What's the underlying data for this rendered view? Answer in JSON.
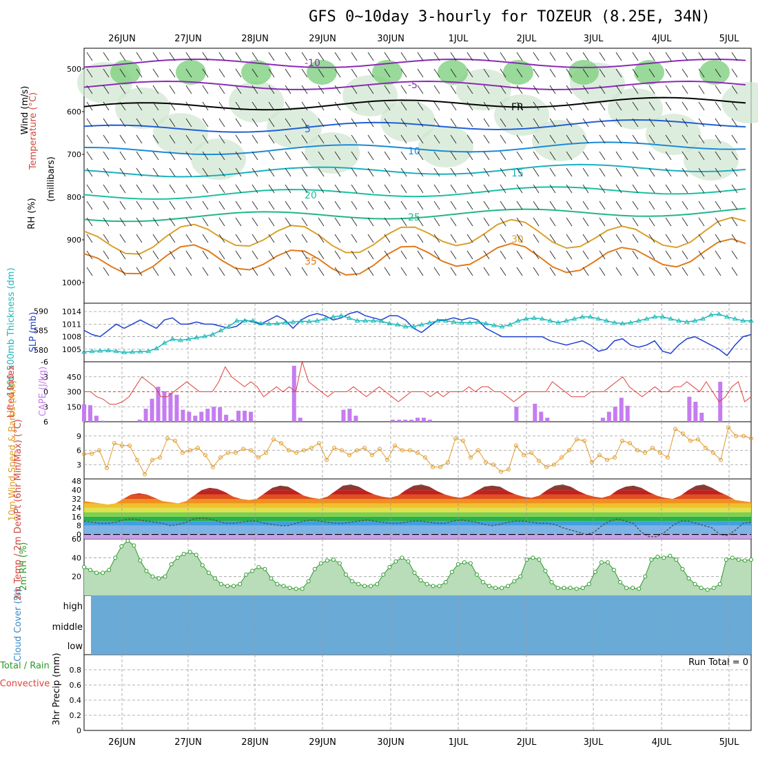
{
  "title": "GFS 0~10day 3-hourly for TOZEUR (8.25E, 34N)",
  "dates": [
    "26JUN",
    "27JUN",
    "28JUN",
    "29JUN",
    "30JUN",
    "1JUL",
    "2JUL",
    "3JUL",
    "4JUL",
    "5JUL"
  ],
  "colors": {
    "grid": "#999999",
    "slp": "#1f3fcf",
    "thickness": "#19b9b9",
    "lifted_index": "#e0403a",
    "cape": "#c57cf0",
    "wind": "#e09a2a",
    "rh": "#2a9a2a",
    "cloud_bg": "#6aaad6",
    "cloud_fill": "#ececec"
  },
  "chart_data": [
    {
      "panel": "upper-air",
      "type": "heatmap",
      "ylabel_parts": [
        "Wind (m/s)",
        "Temperature (°C)",
        "RH (%)",
        "(millibars)"
      ],
      "y_ticks": [
        "500",
        "600",
        "700",
        "800",
        "900",
        "1000"
      ],
      "ylim": [
        1000,
        450
      ],
      "temperature_contour_labels": [
        "-10",
        "-5",
        "FR",
        "5",
        "10",
        "15",
        "20",
        "25",
        "30",
        "35"
      ],
      "temperature_isotherms": [
        -10,
        -5,
        0,
        5,
        10,
        15,
        20,
        25,
        30,
        35
      ]
    },
    {
      "panel": "slp-thickness",
      "type": "line",
      "ylabel_left": "1000-500mb Thickness (dm)",
      "ylabel_right": "SLP (mb)",
      "y_ticks_left": [
        "590",
        "585",
        "580"
      ],
      "y_ticks_right": [
        "1014",
        "1011",
        "1008",
        "1005"
      ],
      "series": [
        {
          "name": "SLP (mb)",
          "values": [
            1009.5,
            1008.5,
            1008,
            1009.5,
            1011,
            1010,
            1011,
            1012,
            1011,
            1010,
            1012,
            1012.5,
            1011,
            1011,
            1011.5,
            1011,
            1011,
            1010.5,
            1010,
            1010.5,
            1012,
            1011.5,
            1011,
            1012,
            1013,
            1012,
            1010,
            1012,
            1013,
            1013.5,
            1013,
            1012,
            1012.5,
            1013.5,
            1014,
            1013,
            1012.5,
            1012,
            1013,
            1013,
            1012,
            1010,
            1009,
            1010.5,
            1012,
            1012,
            1012.5,
            1012,
            1012.5,
            1012,
            1010,
            1009,
            1008,
            1008,
            1008,
            1008,
            1008,
            1008,
            1007,
            1006.5,
            1006,
            1006.5,
            1007,
            1006,
            1004.5,
            1005,
            1007,
            1007.5,
            1006,
            1005.5,
            1006,
            1007,
            1004.5,
            1004,
            1006,
            1007.5,
            1008,
            1007,
            1006,
            1005,
            1003.5,
            1006,
            1008,
            1008.5
          ]
        },
        {
          "name": "1000-500mb Thickness (dm)",
          "values": [
            579.5,
            579.7,
            579.8,
            579.9,
            579.7,
            579.4,
            579.5,
            579.6,
            579.7,
            580.4,
            581.8,
            582.8,
            582.5,
            582.8,
            583.2,
            583.5,
            584.0,
            585.0,
            586.0,
            587.5,
            587.5,
            587.5,
            586.8,
            586.7,
            586.8,
            587.0,
            587.2,
            587.4,
            587.3,
            587.5,
            588.0,
            588.5,
            588.8,
            588.2,
            587.5,
            587.5,
            587.5,
            587.4,
            586.8,
            586.5,
            586.0,
            586.0,
            586.5,
            587.0,
            587.5,
            587.5,
            587.2,
            587.0,
            587.0,
            587.2,
            586.8,
            586.3,
            586.0,
            586.5,
            587.5,
            588.0,
            588.2,
            588.0,
            587.5,
            587.0,
            587.5,
            588.0,
            588.5,
            588.5,
            588.0,
            587.5,
            587.0,
            586.8,
            587.0,
            587.5,
            588.0,
            588.5,
            588.5,
            588.0,
            587.5,
            587.2,
            587.5,
            588.0,
            589.0,
            589.2,
            588.5,
            588.0,
            587.5,
            587.5
          ]
        }
      ]
    },
    {
      "panel": "cape-li",
      "type": "bar",
      "ylabel_left": "Lifted Index",
      "ylabel_right": "CAPE (J/kg)",
      "y_ticks_left": [
        "-6",
        "-3",
        "0",
        "3",
        "6"
      ],
      "y_ticks_right": [
        "450",
        "300",
        "150"
      ],
      "cape": [
        175,
        165,
        60,
        10,
        0,
        0,
        0,
        0,
        0,
        20,
        130,
        230,
        350,
        305,
        290,
        270,
        120,
        100,
        60,
        100,
        130,
        150,
        145,
        70,
        20,
        110,
        110,
        100,
        0,
        0,
        0,
        0,
        0,
        0,
        560,
        40,
        0,
        0,
        0,
        0,
        0,
        0,
        120,
        130,
        60,
        0,
        0,
        0,
        0,
        0,
        20,
        20,
        20,
        20,
        40,
        40,
        20,
        0,
        0,
        0,
        0,
        0,
        0,
        0,
        0,
        0,
        0,
        0,
        0,
        0,
        150,
        0,
        0,
        180,
        100,
        40,
        0,
        0,
        0,
        0,
        0,
        0,
        0,
        0,
        40,
        100,
        150,
        240,
        160,
        0,
        0,
        0,
        0,
        0,
        0,
        0,
        0,
        0,
        250,
        200,
        90,
        0,
        0,
        400,
        0,
        0,
        0,
        0,
        0
      ],
      "lifted_index": [
        0,
        0,
        1,
        1.5,
        2.5,
        2.5,
        2,
        1,
        -1,
        -3,
        -2,
        -1,
        1,
        1,
        0,
        -1,
        -2,
        -1,
        0,
        0,
        0,
        -2,
        -5,
        -3,
        -2,
        -1,
        -2,
        -1,
        1,
        0,
        -1,
        0,
        -1,
        0,
        -6,
        -2,
        -1,
        0,
        1,
        0,
        0,
        0,
        -1,
        0,
        1,
        0,
        -1,
        0,
        1,
        2,
        1,
        0,
        0,
        0,
        1,
        0,
        1,
        0,
        0,
        0,
        -1,
        0,
        -1,
        -1,
        0,
        0,
        1,
        2,
        1,
        0,
        0,
        0,
        0,
        -2,
        -1,
        0,
        1,
        1,
        1,
        0,
        0,
        0,
        -1,
        -2,
        -3,
        -1,
        0,
        1,
        0,
        -1,
        0,
        0,
        -1,
        -1,
        -2,
        -1,
        0,
        -2,
        0,
        2,
        1,
        -1,
        -2,
        2,
        1
      ]
    },
    {
      "panel": "wind10m",
      "type": "line",
      "ylabel": "10m Wind Speed & Barbs (m/s)",
      "y_ticks": [
        "9",
        "6",
        "3"
      ],
      "values": [
        5.2,
        5.3,
        6.0,
        2.3,
        7.5,
        7.0,
        7.0,
        4.0,
        1.0,
        4.0,
        4.5,
        8.5,
        8.0,
        5.5,
        6.0,
        6.5,
        5.0,
        2.5,
        4.5,
        5.5,
        5.5,
        6.3,
        6.0,
        4.5,
        5.5,
        8.3,
        7.5,
        6.0,
        5.5,
        6.0,
        6.5,
        7.5,
        4.0,
        6.5,
        6.0,
        5.0,
        6.0,
        6.5,
        5.0,
        6.3,
        4.0,
        7.0,
        6.0,
        6.0,
        5.5,
        4.5,
        2.5,
        2.5,
        3.5,
        8.5,
        8.0,
        4.5,
        6.0,
        3.5,
        3.0,
        1.5,
        2.0,
        7.0,
        5.0,
        5.5,
        3.8,
        2.5,
        3.0,
        4.5,
        6.0,
        8.3,
        8.0,
        3.5,
        5.0,
        4.0,
        4.5,
        8.0,
        7.5,
        6.0,
        5.5,
        6.5,
        5.5,
        4.5,
        10.5,
        9.5,
        8.0,
        8.3,
        6.5,
        5.5,
        4.0,
        10.8,
        9.0,
        9.0,
        8.5
      ]
    },
    {
      "panel": "temp2m",
      "type": "area",
      "ylabel": "2m Temp / 2m DewPt (6hr Min/Max) (°C)",
      "y_ticks": [
        "48",
        "40",
        "32",
        "24",
        "16",
        "8",
        "0"
      ],
      "temperature": [
        30,
        29,
        28,
        27,
        28,
        32,
        36,
        37,
        36,
        33,
        30,
        29,
        28,
        30,
        35,
        40,
        42,
        41,
        38,
        34,
        32,
        31,
        32,
        37,
        42,
        44,
        43,
        39,
        35,
        33,
        32,
        34,
        39,
        44,
        45,
        43,
        39,
        36,
        34,
        33,
        35,
        40,
        44,
        45,
        43,
        39,
        36,
        34,
        33,
        35,
        39,
        43,
        44,
        43,
        39,
        36,
        34,
        33,
        35,
        40,
        44,
        45,
        43,
        39,
        36,
        34,
        33,
        35,
        40,
        43,
        44,
        42,
        38,
        35,
        33,
        32,
        35,
        40,
        44,
        45,
        42,
        38,
        35,
        31,
        30,
        29
      ],
      "dewpoint": [
        12,
        11,
        10,
        10,
        11,
        13,
        14,
        13,
        12,
        11,
        10,
        8,
        9,
        11,
        14,
        15,
        14,
        12,
        10,
        10,
        11,
        12,
        12,
        10,
        9,
        8,
        8,
        10,
        12,
        13,
        12,
        11,
        10,
        10,
        11,
        12,
        13,
        12,
        11,
        10,
        10,
        11,
        12,
        12,
        11,
        10,
        10,
        12,
        13,
        12,
        11,
        9,
        8,
        9,
        11,
        12,
        12,
        11,
        10,
        10,
        9,
        6,
        4,
        2,
        0,
        2,
        8,
        12,
        14,
        12,
        10,
        2,
        -2,
        -2,
        2,
        8,
        12,
        12,
        10,
        8,
        6,
        0,
        -1,
        4,
        10,
        11
      ]
    },
    {
      "panel": "rh2m",
      "type": "area",
      "ylabel": "2m RH (%)",
      "y_ticks": [
        "60",
        "40",
        "20"
      ],
      "values": [
        30,
        27,
        24,
        24,
        27,
        40,
        52,
        58,
        53,
        37,
        26,
        20,
        18,
        20,
        33,
        40,
        44,
        46,
        43,
        32,
        24,
        18,
        12,
        10,
        10,
        12,
        22,
        26,
        30,
        28,
        18,
        12,
        10,
        8,
        7,
        7,
        15,
        28,
        34,
        37,
        38,
        34,
        22,
        15,
        12,
        10,
        10,
        12,
        22,
        30,
        36,
        40,
        36,
        24,
        16,
        12,
        10,
        10,
        14,
        25,
        33,
        35,
        34,
        22,
        14,
        10,
        8,
        8,
        10,
        15,
        20,
        38,
        40,
        38,
        26,
        14,
        8,
        8,
        8,
        7,
        8,
        12,
        25,
        35,
        35,
        27,
        14,
        8,
        8,
        7,
        20,
        38,
        41,
        40,
        42,
        38,
        28,
        18,
        12,
        8,
        6,
        8,
        12,
        38,
        40,
        38,
        37,
        38
      ],
      "ylim": [
        0,
        60
      ]
    },
    {
      "panel": "cloud",
      "type": "bar",
      "ylabel": "Cloud Cover (%)",
      "y_ticks": [
        "high",
        "middle",
        "low"
      ]
    },
    {
      "panel": "precip",
      "type": "bar",
      "ylabel": "3hr Precip (mm)",
      "ylabel_total": "Total / Rain",
      "ylabel_conv": "Convective",
      "y_ticks": [
        "0.8",
        "0.6",
        "0.4",
        "0.2",
        "0"
      ],
      "run_total": "Run Total = 0",
      "values": []
    }
  ]
}
